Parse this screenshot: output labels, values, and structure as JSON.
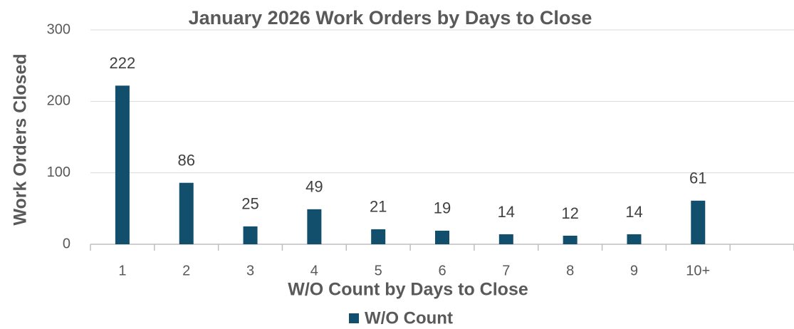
{
  "chart_data": {
    "type": "bar",
    "title": "January 2026 Work Orders by Days to Close",
    "x_label": "W/O Count by Days to Close",
    "y_label": "Work Orders Closed",
    "categories": [
      "1",
      "2",
      "3",
      "4",
      "5",
      "6",
      "7",
      "8",
      "9",
      "10+",
      null
    ],
    "series": [
      {
        "name": "W/O Count",
        "color": "#124f6c",
        "values": [
          222,
          86,
          25,
          49,
          21,
          19,
          14,
          12,
          14,
          61,
          null
        ]
      }
    ],
    "ylim": [
      0,
      300
    ],
    "yticks": [
      0,
      100,
      200,
      300
    ],
    "grid": true,
    "legend": "bottom",
    "data_labels": true
  }
}
